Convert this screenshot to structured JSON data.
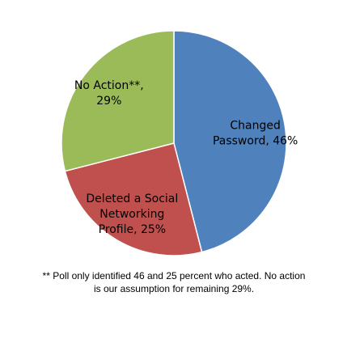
{
  "chart_data": {
    "type": "pie",
    "title": "",
    "slices": [
      {
        "label_lines": [
          "Changed",
          "Password, 46%"
        ],
        "category": "Changed Password",
        "value": 46,
        "color": "#4F81BD"
      },
      {
        "label_lines": [
          "Deleted a Social",
          "Networking",
          "Profile, 25%"
        ],
        "category": "Deleted a Social Networking Profile",
        "value": 25,
        "color": "#C0504D"
      },
      {
        "label_lines": [
          "No Action**,",
          "29%"
        ],
        "category": "No Action**",
        "value": 29,
        "color": "#9BBB59"
      }
    ],
    "start_angle_deg": 0,
    "direction": "clockwise",
    "legend": "none",
    "label_color": "#000000",
    "slice_border_color": "#ffffff"
  },
  "footnote": {
    "line1": "** Poll only identified 46 and 25 percent who acted.  No action",
    "line2": "is our assumption for remaining 29%."
  }
}
